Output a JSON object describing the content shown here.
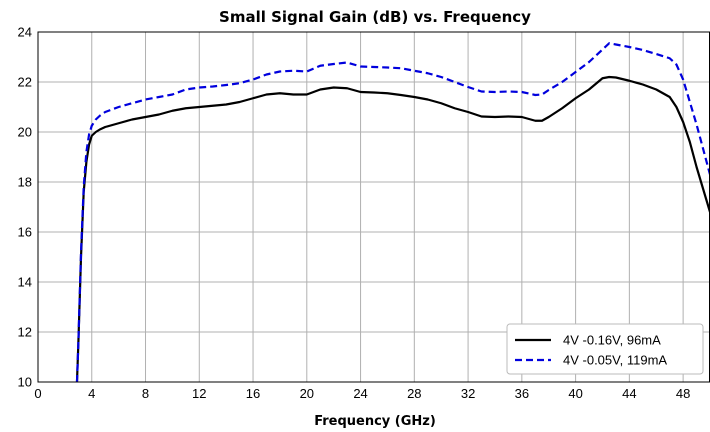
{
  "chart_data": {
    "type": "line",
    "title": "Small Signal Gain (dB) vs. Frequency",
    "xlabel": "Frequency (GHz)",
    "ylabel": "",
    "xlim": [
      0,
      50
    ],
    "ylim": [
      10,
      24
    ],
    "xticks": [
      0,
      4,
      8,
      12,
      16,
      20,
      24,
      28,
      32,
      36,
      40,
      44,
      48
    ],
    "yticks": [
      10,
      12,
      14,
      16,
      18,
      20,
      22,
      24
    ],
    "grid": true,
    "legend_position": "bottom-right",
    "series": [
      {
        "name": "4V -0.16V, 96mA",
        "color": "#000000",
        "dash": "solid",
        "x": [
          2.9,
          3.0,
          3.2,
          3.4,
          3.6,
          3.8,
          4.0,
          4.3,
          4.6,
          5.0,
          6.0,
          7.0,
          8.0,
          9.0,
          10.0,
          11.0,
          12.0,
          13.0,
          14.0,
          15.0,
          16.0,
          17.0,
          18.0,
          19.0,
          20.0,
          21.0,
          22.0,
          23.0,
          24.0,
          25.0,
          26.0,
          27.0,
          28.0,
          29.0,
          30.0,
          31.0,
          32.0,
          33.0,
          34.0,
          35.0,
          36.0,
          37.0,
          37.5,
          38.0,
          39.0,
          40.0,
          41.0,
          42.0,
          42.5,
          43.0,
          44.0,
          45.0,
          46.0,
          47.0,
          47.5,
          48.0,
          48.5,
          49.0,
          49.5,
          50.0
        ],
        "y": [
          10.0,
          11.5,
          15.0,
          17.6,
          18.8,
          19.5,
          19.85,
          20.0,
          20.1,
          20.2,
          20.35,
          20.5,
          20.6,
          20.7,
          20.85,
          20.95,
          21.0,
          21.05,
          21.1,
          21.2,
          21.35,
          21.5,
          21.55,
          21.5,
          21.5,
          21.7,
          21.78,
          21.75,
          21.6,
          21.58,
          21.55,
          21.48,
          21.4,
          21.3,
          21.15,
          20.95,
          20.8,
          20.62,
          20.6,
          20.62,
          20.6,
          20.45,
          20.45,
          20.6,
          20.95,
          21.35,
          21.7,
          22.15,
          22.2,
          22.18,
          22.05,
          21.9,
          21.7,
          21.4,
          21.0,
          20.4,
          19.6,
          18.6,
          17.7,
          16.8
        ]
      },
      {
        "name": "4V -0.05V, 119mA",
        "color": "#0000dd",
        "dash": "dashed",
        "x": [
          2.9,
          3.0,
          3.2,
          3.4,
          3.6,
          3.8,
          4.0,
          4.3,
          4.6,
          5.0,
          6.0,
          7.0,
          8.0,
          9.0,
          10.0,
          11.0,
          12.0,
          13.0,
          14.0,
          15.0,
          16.0,
          17.0,
          18.0,
          19.0,
          20.0,
          21.0,
          22.0,
          23.0,
          24.0,
          25.0,
          26.0,
          27.0,
          28.0,
          29.0,
          30.0,
          31.0,
          32.0,
          33.0,
          34.0,
          35.0,
          36.0,
          37.0,
          37.5,
          38.0,
          39.0,
          40.0,
          41.0,
          42.0,
          42.5,
          43.0,
          44.0,
          45.0,
          46.0,
          47.0,
          47.5,
          48.0,
          48.5,
          49.0,
          49.5,
          50.0
        ],
        "y": [
          10.0,
          11.5,
          15.2,
          17.8,
          19.2,
          19.9,
          20.25,
          20.5,
          20.65,
          20.8,
          21.0,
          21.15,
          21.3,
          21.4,
          21.5,
          21.7,
          21.78,
          21.82,
          21.88,
          21.95,
          22.1,
          22.3,
          22.42,
          22.45,
          22.42,
          22.65,
          22.72,
          22.78,
          22.62,
          22.6,
          22.58,
          22.55,
          22.45,
          22.35,
          22.2,
          22.0,
          21.8,
          21.62,
          21.6,
          21.62,
          21.6,
          21.48,
          21.5,
          21.68,
          22.0,
          22.4,
          22.8,
          23.3,
          23.55,
          23.5,
          23.4,
          23.28,
          23.12,
          22.95,
          22.7,
          22.1,
          21.2,
          20.3,
          19.3,
          18.3
        ]
      }
    ]
  }
}
